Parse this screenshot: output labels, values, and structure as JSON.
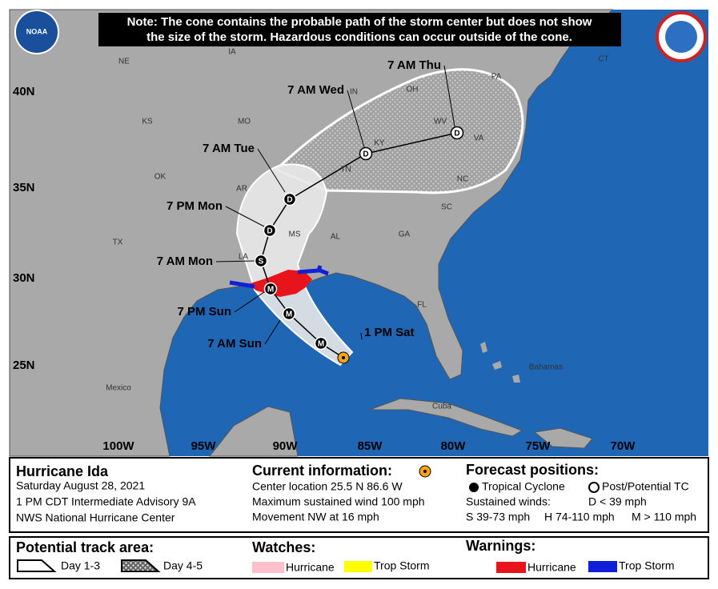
{
  "note_lines": [
    "Note: The cone contains the probable path of the storm center but does not show",
    "the size of the storm. Hazardous conditions can occur outside of the cone."
  ],
  "logo": "NOAA",
  "lat_labels": [
    "40N",
    "35N",
    "30N",
    "25N"
  ],
  "lon_labels": [
    "100W",
    "95W",
    "90W",
    "85W",
    "80W",
    "75W",
    "70W"
  ],
  "regions": [
    "NE",
    "IA",
    "KS",
    "MO",
    "OK",
    "AR",
    "TX",
    "LA",
    "MS",
    "AL",
    "GA",
    "TN",
    "KY",
    "IN",
    "OH",
    "WV",
    "VA",
    "NC",
    "SC",
    "FL",
    "PA",
    "CT",
    "Mexico",
    "Cuba",
    "Bahamas"
  ],
  "forecast_points": [
    {
      "time": "1 PM Sat"
    },
    {
      "symbol": "M"
    },
    {
      "time": "7 AM Sun",
      "symbol": "M"
    },
    {
      "time": "7 PM Sun",
      "symbol": "M"
    },
    {
      "time": "7 AM Mon",
      "symbol": "S"
    },
    {
      "time": "7 PM Mon",
      "symbol": "D"
    },
    {
      "time": "7 AM Tue",
      "symbol": "D"
    },
    {
      "time": "7 AM Wed",
      "symbol": "D"
    },
    {
      "time": "7 AM Thu",
      "symbol": "D"
    }
  ],
  "storm": {
    "name": "Hurricane Ida",
    "date": "Saturday August 28, 2021",
    "advisory": "1 PM CDT Intermediate Advisory 9A",
    "office": "NWS National Hurricane Center"
  },
  "current": {
    "heading": "Current information:",
    "location": "Center location 25.5 N 86.6 W",
    "wind": "Maximum sustained wind 100 mph",
    "movement": "Movement NW at 16 mph"
  },
  "forecast_legend": {
    "heading": "Forecast positions:",
    "tropical": "Tropical Cyclone",
    "post": "Post/Potential TC",
    "winds": "Sustained winds:",
    "d": "D < 39 mph",
    "s": "S 39-73 mph",
    "h": "H 74-110 mph",
    "m": "M > 110 mph"
  },
  "track_area": {
    "heading": "Potential track area:",
    "day13": "Day 1-3",
    "day45": "Day 4-5"
  },
  "watches": {
    "heading": "Watches:",
    "hurricane": "Hurricane",
    "tropstorm": "Trop Storm"
  },
  "warnings": {
    "heading": "Warnings:",
    "hurricane": "Hurricane",
    "tropstorm": "Trop Storm"
  }
}
